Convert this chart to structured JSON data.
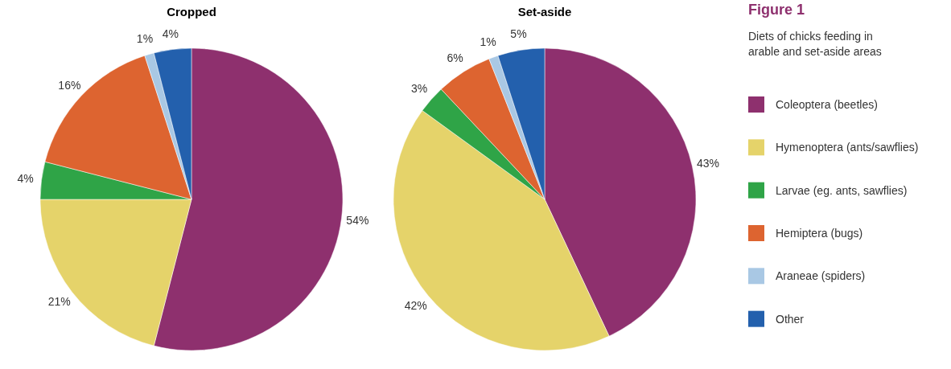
{
  "chart_data": [
    {
      "type": "pie",
      "title": "Cropped",
      "categories": [
        "Coleoptera (beetles)",
        "Hymenoptera (ants/sawflies)",
        "Larvae (eg. ants, sawflies)",
        "Hemiptera (bugs)",
        "Araneae (spiders)",
        "Other"
      ],
      "values": [
        54,
        21,
        4,
        16,
        1,
        4
      ],
      "value_labels": [
        "54%",
        "21%",
        "4%",
        "16%",
        "1%",
        "4%"
      ],
      "colors": [
        "#8e306e",
        "#e5d36a",
        "#2fa447",
        "#dd6430",
        "#a9c8e4",
        "#2360ad"
      ],
      "legend": "right",
      "annotations": [
        "Figure 1",
        "Diets of chicks feeding in arable and set-aside areas"
      ]
    },
    {
      "type": "pie",
      "title": "Set-aside",
      "categories": [
        null,
        null,
        null,
        null,
        null,
        null
      ],
      "values": [
        43,
        42,
        3,
        6,
        1,
        5
      ],
      "value_labels": [
        "43%",
        "42%",
        "3%",
        "6%",
        "1%",
        "5%"
      ],
      "colors": [
        "#8e306e",
        "#e5d36a",
        "#2fa447",
        "#dd6430",
        "#a9c8e4",
        "#2360ad"
      ]
    }
  ]
}
